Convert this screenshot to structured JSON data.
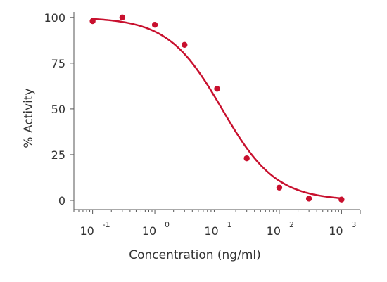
{
  "chart_data": {
    "type": "scatter",
    "xlabel": "Concentration (ng/ml)",
    "ylabel": "% Activity",
    "x_scale": "log",
    "xlim": [
      0.05,
      2000
    ],
    "ylim": [
      -5,
      103
    ],
    "x_ticks": [
      {
        "value": 0.1,
        "base": "10",
        "exp": "-1"
      },
      {
        "value": 1,
        "base": "10",
        "exp": "0"
      },
      {
        "value": 10,
        "base": "10",
        "exp": "1"
      },
      {
        "value": 100,
        "base": "10",
        "exp": "2"
      },
      {
        "value": 1000,
        "base": "10",
        "exp": "3"
      }
    ],
    "y_ticks": [
      0,
      25,
      50,
      75,
      100
    ],
    "grid": false,
    "series": [
      {
        "points": [
          {
            "x": 0.1,
            "y": 98
          },
          {
            "x": 0.3,
            "y": 100
          },
          {
            "x": 1,
            "y": 96
          },
          {
            "x": 3,
            "y": 85
          },
          {
            "x": 10,
            "y": 61
          },
          {
            "x": 30,
            "y": 23
          },
          {
            "x": 100,
            "y": 7
          },
          {
            "x": 300,
            "y": 1
          },
          {
            "x": 1000,
            "y": 0.5
          }
        ]
      }
    ],
    "fit_curve": {
      "model": "four-parameter logistic",
      "top": 100,
      "bottom": 0,
      "ec50": 12,
      "hill": 1.0
    },
    "colors": {
      "data": "#c8102e",
      "axis": "#555555",
      "text": "#333333"
    }
  }
}
